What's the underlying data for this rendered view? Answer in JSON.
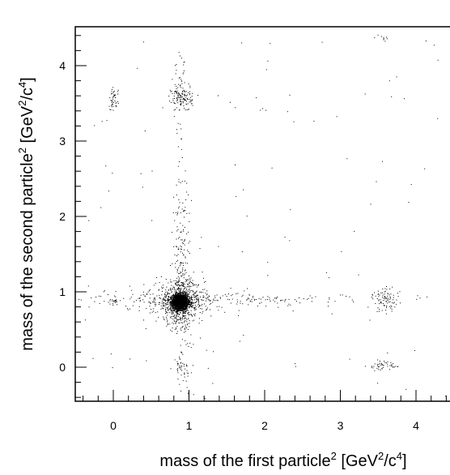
{
  "chart_data": {
    "type": "scatter",
    "title": "",
    "xlabel": {
      "pre": "mass of the first particle",
      "sup1": "2",
      "mid": " [GeV",
      "sup2": "2",
      "mid2": "/c",
      "sup3": "4",
      "post": "]"
    },
    "ylabel": {
      "pre": "mass of the second particle",
      "sup1": "2",
      "mid": " [GeV",
      "sup2": "2",
      "mid2": "/c",
      "sup3": "4",
      "post": "]"
    },
    "xlim": [
      -0.5,
      4.5
    ],
    "ylim": [
      -0.5,
      4.45
    ],
    "x_ticks": [
      "0",
      "1",
      "2",
      "3",
      "4"
    ],
    "y_ticks": [
      "0",
      "1",
      "2",
      "3",
      "4"
    ],
    "grid": false,
    "marker_color": "#000000",
    "clusters": [
      {
        "x": 0.88,
        "y": 0.87,
        "sx": 0.05,
        "sy": 0.05,
        "n": 2400
      },
      {
        "x": 0.88,
        "y": 0.87,
        "sx": 0.16,
        "sy": 0.14,
        "n": 700
      },
      {
        "x": 0.88,
        "y": 0.9,
        "sx": 0.75,
        "sy": 0.06,
        "n": 220
      },
      {
        "x": 0.9,
        "y": 1.1,
        "sx": 0.06,
        "sy": 0.7,
        "n": 230
      },
      {
        "x": 0.9,
        "y": 3.58,
        "sx": 0.07,
        "sy": 0.09,
        "n": 140
      },
      {
        "x": 0.9,
        "y": 3.9,
        "sx": 0.05,
        "sy": 0.15,
        "n": 20
      },
      {
        "x": 0.0,
        "y": 3.55,
        "sx": 0.03,
        "sy": 0.08,
        "n": 45
      },
      {
        "x": 3.6,
        "y": 0.9,
        "sx": 0.09,
        "sy": 0.08,
        "n": 90
      },
      {
        "x": 3.55,
        "y": 0.02,
        "sx": 0.1,
        "sy": 0.03,
        "n": 45
      },
      {
        "x": 0.0,
        "y": 0.88,
        "sx": 0.03,
        "sy": 0.03,
        "n": 15
      },
      {
        "x": 0.9,
        "y": 0.0,
        "sx": 0.05,
        "sy": 0.05,
        "n": 30
      },
      {
        "x": 2.3,
        "y": 0.9,
        "sx": 0.9,
        "sy": 0.03,
        "n": 50
      },
      {
        "x": 0.88,
        "y": 2.4,
        "sx": 0.04,
        "sy": 0.5,
        "n": 30
      },
      {
        "x": 3.57,
        "y": 4.37,
        "sx": 0.04,
        "sy": 0.02,
        "n": 8
      }
    ],
    "background_points": 110
  }
}
